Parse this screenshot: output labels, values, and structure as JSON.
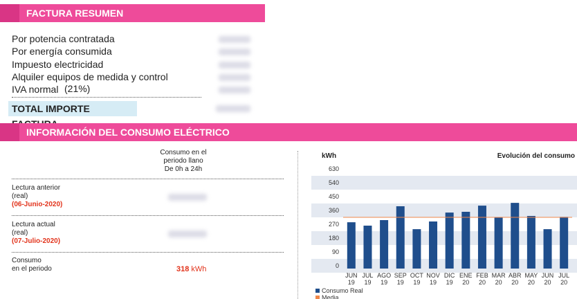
{
  "summary": {
    "title": "FACTURA RESUMEN",
    "items": [
      "Por potencia contratada",
      "Por energía consumida",
      "Impuesto electricidad",
      "Alquiler equipos de medida y control",
      "IVA normal"
    ],
    "iva_rate": "(21%)",
    "total_label": "TOTAL IMPORTE FACTURA"
  },
  "consumption": {
    "title": "INFORMACIÓN DEL CONSUMO ELÉCTRICO",
    "column_header": [
      "Consumo en el",
      "periodo llano",
      "De 0h a 24h"
    ],
    "rows": [
      {
        "label": [
          "Lectura anterior",
          "(real)"
        ],
        "date": "(06-Junio-2020)"
      },
      {
        "label": [
          "Lectura actual",
          "(real)"
        ],
        "date": "(07-Julio-2020)"
      }
    ],
    "total": {
      "label": [
        "Consumo",
        "en el periodo"
      ],
      "value": "318",
      "unit": "kWh"
    }
  },
  "chart_data": {
    "type": "bar",
    "title": "Evolución del consumo",
    "y_label": "kWh",
    "categories": [
      "JUN 19",
      "JUL 19",
      "AGO 19",
      "SEP 19",
      "OCT 19",
      "NOV 19",
      "DIC 19",
      "ENE 20",
      "FEB 20",
      "MAR 20",
      "ABR 20",
      "MAY 20",
      "JUN 20",
      "JUL 20"
    ],
    "series": [
      {
        "name": "Consumo Real",
        "color": "#1f4e8c",
        "values": [
          283,
          261,
          297,
          387,
          238,
          288,
          346,
          351,
          391,
          315,
          409,
          324,
          238,
          318
        ]
      }
    ],
    "average": {
      "name": "Media",
      "color": "#f0874a",
      "value": 315
    },
    "ylim": [
      0,
      630
    ],
    "yticks": [
      0,
      90,
      180,
      270,
      360,
      450,
      540,
      630
    ],
    "grid": true
  }
}
